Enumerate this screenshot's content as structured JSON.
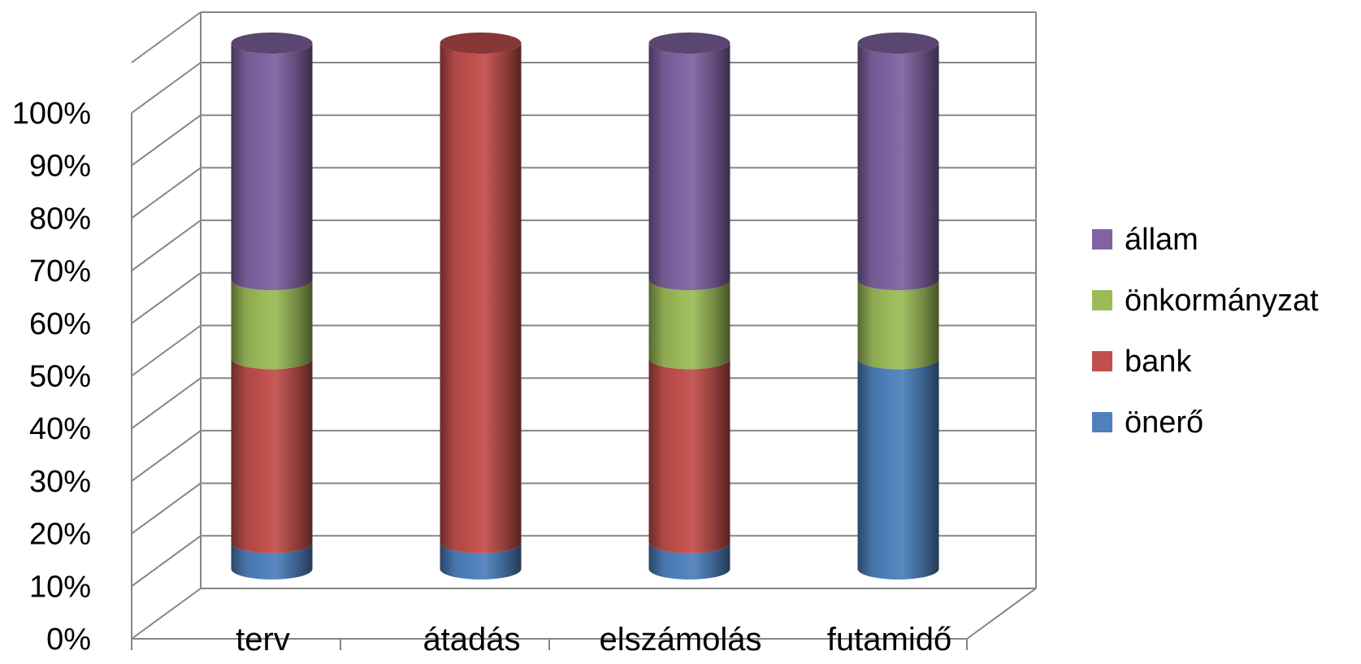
{
  "chart_data": {
    "type": "bar",
    "stacked": "percent",
    "three_d": "cylinder",
    "categories": [
      "terv",
      "átadás",
      "elszámolás",
      "futamidő"
    ],
    "series": [
      {
        "name": "önerő",
        "values": [
          5,
          5,
          5,
          40
        ],
        "color": "#4f81bd"
      },
      {
        "name": "bank",
        "values": [
          35,
          95,
          35,
          0
        ],
        "color": "#c0504d"
      },
      {
        "name": "önkormányzat",
        "values": [
          15,
          0,
          15,
          15
        ],
        "color": "#9bbb59"
      },
      {
        "name": "állam",
        "values": [
          45,
          0,
          45,
          45
        ],
        "color": "#8064a2"
      }
    ],
    "yticks": [
      "0%",
      "10%",
      "20%",
      "30%",
      "40%",
      "50%",
      "60%",
      "70%",
      "80%",
      "90%",
      "100%"
    ],
    "ylim": [
      0,
      100
    ],
    "grid": true,
    "legend_position": "right",
    "legend_order": [
      "állam",
      "önkormányzat",
      "bank",
      "önerő"
    ]
  }
}
